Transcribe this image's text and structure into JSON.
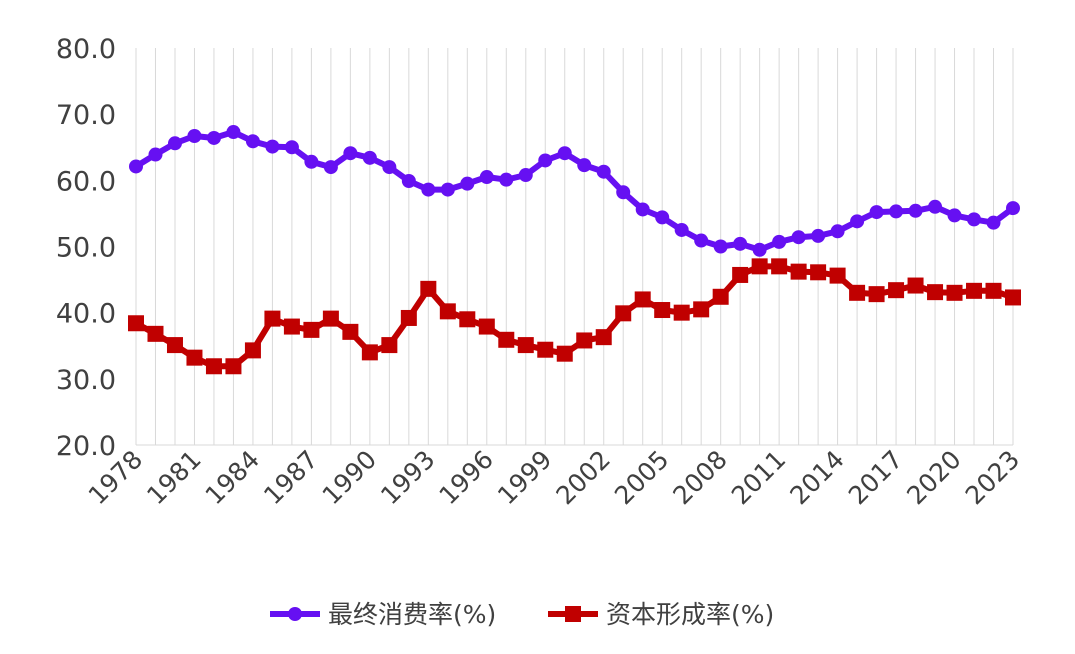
{
  "chart_data": {
    "type": "line",
    "title": "",
    "xlabel": "",
    "ylabel": "",
    "ylim": [
      20,
      80
    ],
    "y_ticks": [
      "20.0",
      "30.0",
      "40.0",
      "50.0",
      "60.0",
      "70.0",
      "80.0"
    ],
    "grid": "vertical gridlines at every category",
    "legend_position": "bottom",
    "x": [
      1978,
      1979,
      1980,
      1981,
      1982,
      1983,
      1984,
      1985,
      1986,
      1987,
      1988,
      1989,
      1990,
      1991,
      1992,
      1993,
      1994,
      1995,
      1996,
      1997,
      1998,
      1999,
      2000,
      2001,
      2002,
      2003,
      2004,
      2005,
      2006,
      2007,
      2008,
      2009,
      2010,
      2011,
      2012,
      2013,
      2014,
      2015,
      2016,
      2017,
      2018,
      2019,
      2020,
      2021,
      2022,
      2023
    ],
    "x_tick_labels": [
      "1978",
      "1981",
      "1984",
      "1987",
      "1990",
      "1993",
      "1996",
      "1999",
      "2002",
      "2005",
      "2008",
      "2011",
      "2014",
      "2017",
      "2020",
      "2023"
    ],
    "series": [
      {
        "name": "最终消费率(%)",
        "color": "#6610f2",
        "marker": "circle",
        "values": [
          62.1,
          63.9,
          65.6,
          66.7,
          66.4,
          67.3,
          65.9,
          65.1,
          65.0,
          62.8,
          62.0,
          64.1,
          63.4,
          62.0,
          59.9,
          58.6,
          58.6,
          59.5,
          60.5,
          60.1,
          60.8,
          63.0,
          64.1,
          62.3,
          61.3,
          58.2,
          55.6,
          54.4,
          52.5,
          50.9,
          50.0,
          50.4,
          49.5,
          50.7,
          51.4,
          51.6,
          52.3,
          53.8,
          55.2,
          55.3,
          55.4,
          56.0,
          54.7,
          54.1,
          53.6,
          55.8
        ]
      },
      {
        "name": "资本形成率(%)",
        "color": "#c00000",
        "marker": "square",
        "values": [
          38.4,
          36.8,
          35.1,
          33.2,
          31.9,
          31.9,
          34.3,
          39.1,
          37.9,
          37.4,
          39.1,
          37.1,
          34.0,
          35.1,
          39.2,
          43.6,
          40.2,
          39.0,
          37.9,
          35.9,
          35.1,
          34.4,
          33.8,
          35.8,
          36.3,
          39.9,
          42.0,
          40.4,
          40.0,
          40.5,
          42.4,
          45.7,
          47.0,
          47.0,
          46.2,
          46.1,
          45.6,
          43.0,
          42.8,
          43.4,
          44.1,
          43.1,
          43.0,
          43.3,
          43.3,
          42.3
        ]
      }
    ]
  }
}
